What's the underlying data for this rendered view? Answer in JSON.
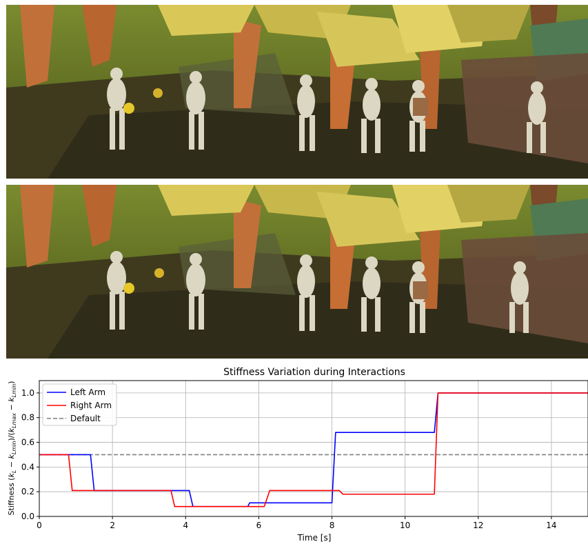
{
  "images": [
    {
      "name": "Simulation frame (top)",
      "kind": "photo-3d-render"
    },
    {
      "name": "Simulation frame (bottom)",
      "kind": "photo-3d-render"
    }
  ],
  "chart_data": {
    "type": "line",
    "title": "Stiffness Variation during Interactions",
    "xlabel": "Time [s]",
    "ylabel": "Stiffness (k_L − k_Lmin)/(k_Lmax − k_Lmin)",
    "xlim": [
      0,
      15
    ],
    "ylim": [
      0,
      1.1
    ],
    "xticks": [
      0,
      2,
      4,
      6,
      8,
      10,
      12,
      14
    ],
    "yticks": [
      0.0,
      0.2,
      0.4,
      0.6,
      0.8,
      1.0
    ],
    "grid": true,
    "legend_position": "top-left",
    "series": [
      {
        "name": "Left Arm",
        "color": "#0000ff",
        "x": [
          0,
          1.4,
          1.5,
          3.7,
          4.1,
          4.2,
          5.7,
          5.75,
          8.0,
          8.1,
          10.8,
          10.9,
          15
        ],
        "y": [
          0.5,
          0.5,
          0.21,
          0.21,
          0.21,
          0.08,
          0.08,
          0.11,
          0.11,
          0.68,
          0.68,
          1.0,
          1.0
        ]
      },
      {
        "name": "Right Arm",
        "color": "#ff0000",
        "x": [
          0,
          0.8,
          0.9,
          3.6,
          3.7,
          6.15,
          6.3,
          8.2,
          8.3,
          10.8,
          10.9,
          15
        ],
        "y": [
          0.5,
          0.5,
          0.21,
          0.21,
          0.08,
          0.08,
          0.21,
          0.21,
          0.18,
          0.18,
          1.0,
          1.0
        ]
      },
      {
        "name": "Default",
        "color": "#808080",
        "dashed": true,
        "x": [
          0,
          15
        ],
        "y": [
          0.5,
          0.5
        ]
      }
    ]
  },
  "colors": {
    "ground_grass": "#6c7a2a",
    "ground_soil": "#3d2f20",
    "trunk": "#c2703a",
    "foliage_yellow": "#d9c858",
    "foliage_green": "#4f7a54",
    "character": "#dcd7c2",
    "fence": "#6a4d3a",
    "axes": "#000000",
    "grid": "#b0b0b0"
  }
}
